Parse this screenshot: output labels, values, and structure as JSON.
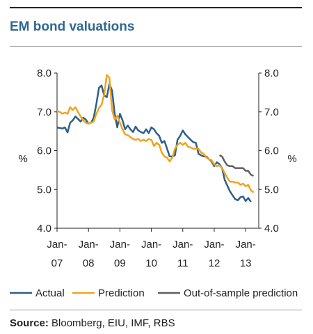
{
  "header": {
    "title": "EM bond valuations"
  },
  "footer": {
    "source_label": "Source:",
    "source_text": " Bloomberg, EIU, IMF, RBS"
  },
  "chart_data": {
    "type": "line",
    "title": "EM bond valuations",
    "ylabel_left": "%",
    "ylabel_right": "%",
    "ylim": [
      4.0,
      8.0
    ],
    "yticks": [
      "4.0",
      "5.0",
      "6.0",
      "7.0",
      "8.0"
    ],
    "xlim": [
      "2007-01",
      "2013-06"
    ],
    "xticks": [
      {
        "x": "2007-01",
        "line1": "Jan-",
        "line2": "07"
      },
      {
        "x": "2008-01",
        "line1": "Jan-",
        "line2": "08"
      },
      {
        "x": "2009-01",
        "line1": "Jan-",
        "line2": "09"
      },
      {
        "x": "2010-01",
        "line1": "Jan-",
        "line2": "10"
      },
      {
        "x": "2011-01",
        "line1": "Jan-",
        "line2": "11"
      },
      {
        "x": "2012-01",
        "line1": "Jan-",
        "line2": "12"
      },
      {
        "x": "2013-01",
        "line1": "Jan-",
        "line2": "13"
      }
    ],
    "grid": false,
    "legend_position": "bottom",
    "series": [
      {
        "name": "Actual",
        "color": "#2e5f8a",
        "points": [
          [
            "2007-01",
            6.6
          ],
          [
            "2007-03",
            6.57
          ],
          [
            "2007-04",
            6.6
          ],
          [
            "2007-05",
            6.47
          ],
          [
            "2007-06",
            6.72
          ],
          [
            "2007-07",
            6.78
          ],
          [
            "2007-08",
            6.88
          ],
          [
            "2007-09",
            6.82
          ],
          [
            "2007-10",
            6.75
          ],
          [
            "2007-11",
            6.85
          ],
          [
            "2007-12",
            6.8
          ],
          [
            "2008-01",
            6.7
          ],
          [
            "2008-02",
            6.72
          ],
          [
            "2008-03",
            6.85
          ],
          [
            "2008-04",
            7.2
          ],
          [
            "2008-05",
            7.62
          ],
          [
            "2008-06",
            7.68
          ],
          [
            "2008-07",
            7.42
          ],
          [
            "2008-08",
            7.38
          ],
          [
            "2008-09",
            7.72
          ],
          [
            "2008-10",
            7.55
          ],
          [
            "2008-11",
            6.95
          ],
          [
            "2008-12",
            6.6
          ],
          [
            "2009-01",
            6.95
          ],
          [
            "2009-02",
            6.78
          ],
          [
            "2009-03",
            6.55
          ],
          [
            "2009-04",
            6.65
          ],
          [
            "2009-05",
            6.55
          ],
          [
            "2009-06",
            6.48
          ],
          [
            "2009-07",
            6.62
          ],
          [
            "2009-08",
            6.52
          ],
          [
            "2009-09",
            6.48
          ],
          [
            "2009-10",
            6.45
          ],
          [
            "2009-11",
            6.55
          ],
          [
            "2009-12",
            6.45
          ],
          [
            "2010-01",
            6.6
          ],
          [
            "2010-02",
            6.55
          ],
          [
            "2010-03",
            6.45
          ],
          [
            "2010-04",
            6.38
          ],
          [
            "2010-05",
            6.2
          ],
          [
            "2010-06",
            6.25
          ],
          [
            "2010-07",
            6.05
          ],
          [
            "2010-08",
            5.85
          ],
          [
            "2010-09",
            5.85
          ],
          [
            "2010-10",
            5.88
          ],
          [
            "2010-11",
            6.28
          ],
          [
            "2010-12",
            6.38
          ],
          [
            "2011-01",
            6.52
          ],
          [
            "2011-02",
            6.42
          ],
          [
            "2011-03",
            6.35
          ],
          [
            "2011-04",
            6.28
          ],
          [
            "2011-05",
            6.22
          ],
          [
            "2011-06",
            6.2
          ],
          [
            "2011-07",
            5.92
          ],
          [
            "2011-08",
            5.88
          ],
          [
            "2011-09",
            5.85
          ],
          [
            "2011-10",
            5.85
          ],
          [
            "2011-11",
            5.78
          ],
          [
            "2011-12",
            5.72
          ],
          [
            "2012-01",
            5.6
          ],
          [
            "2012-02",
            5.7
          ],
          [
            "2012-03",
            5.65
          ],
          [
            "2012-04",
            5.55
          ],
          [
            "2012-05",
            5.25
          ],
          [
            "2012-06",
            5.1
          ],
          [
            "2012-07",
            4.95
          ],
          [
            "2012-08",
            4.85
          ],
          [
            "2012-09",
            4.75
          ],
          [
            "2012-10",
            4.72
          ],
          [
            "2012-11",
            4.8
          ],
          [
            "2012-12",
            4.82
          ],
          [
            "2013-01",
            4.7
          ],
          [
            "2013-02",
            4.78
          ],
          [
            "2013-03",
            4.68
          ]
        ]
      },
      {
        "name": "Prediction",
        "color": "#f0a31e",
        "points": [
          [
            "2007-01",
            7.02
          ],
          [
            "2007-02",
            7.0
          ],
          [
            "2007-03",
            6.95
          ],
          [
            "2007-04",
            6.98
          ],
          [
            "2007-05",
            6.95
          ],
          [
            "2007-06",
            7.12
          ],
          [
            "2007-07",
            7.05
          ],
          [
            "2007-08",
            7.12
          ],
          [
            "2007-09",
            7.0
          ],
          [
            "2007-10",
            6.88
          ],
          [
            "2007-11",
            6.78
          ],
          [
            "2007-12",
            6.72
          ],
          [
            "2008-01",
            6.7
          ],
          [
            "2008-02",
            6.72
          ],
          [
            "2008-03",
            6.75
          ],
          [
            "2008-04",
            6.95
          ],
          [
            "2008-05",
            7.1
          ],
          [
            "2008-06",
            7.18
          ],
          [
            "2008-07",
            7.45
          ],
          [
            "2008-08",
            7.95
          ],
          [
            "2008-09",
            7.88
          ],
          [
            "2008-10",
            7.05
          ],
          [
            "2008-11",
            6.8
          ],
          [
            "2008-12",
            6.9
          ],
          [
            "2009-01",
            6.72
          ],
          [
            "2009-02",
            6.55
          ],
          [
            "2009-03",
            6.42
          ],
          [
            "2009-04",
            6.4
          ],
          [
            "2009-05",
            6.35
          ],
          [
            "2009-06",
            6.3
          ],
          [
            "2009-07",
            6.28
          ],
          [
            "2009-08",
            6.3
          ],
          [
            "2009-09",
            6.25
          ],
          [
            "2009-10",
            6.28
          ],
          [
            "2009-11",
            6.25
          ],
          [
            "2009-12",
            6.3
          ],
          [
            "2010-01",
            6.28
          ],
          [
            "2010-02",
            6.12
          ],
          [
            "2010-03",
            6.2
          ],
          [
            "2010-04",
            6.15
          ],
          [
            "2010-05",
            5.95
          ],
          [
            "2010-06",
            5.85
          ],
          [
            "2010-07",
            5.82
          ],
          [
            "2010-08",
            5.72
          ],
          [
            "2010-09",
            5.82
          ],
          [
            "2010-10",
            6.05
          ],
          [
            "2010-11",
            6.15
          ],
          [
            "2010-12",
            6.2
          ],
          [
            "2011-01",
            6.15
          ],
          [
            "2011-02",
            6.2
          ],
          [
            "2011-03",
            6.1
          ],
          [
            "2011-04",
            6.08
          ],
          [
            "2011-05",
            6.05
          ],
          [
            "2011-06",
            6.05
          ],
          [
            "2011-07",
            6.05
          ],
          [
            "2011-08",
            5.95
          ],
          [
            "2011-09",
            5.92
          ],
          [
            "2011-10",
            5.82
          ],
          [
            "2011-11",
            5.78
          ],
          [
            "2011-12",
            5.75
          ],
          [
            "2012-01",
            5.65
          ],
          [
            "2012-02",
            5.6
          ],
          [
            "2012-03",
            5.62
          ],
          [
            "2012-04",
            5.55
          ],
          [
            "2012-05",
            5.42
          ],
          [
            "2012-06",
            5.3
          ],
          [
            "2012-07",
            5.2
          ],
          [
            "2012-08",
            5.2
          ],
          [
            "2012-09",
            5.18
          ],
          [
            "2012-10",
            5.18
          ],
          [
            "2012-11",
            5.12
          ],
          [
            "2012-12",
            5.15
          ],
          [
            "2013-01",
            5.08
          ],
          [
            "2013-02",
            5.12
          ],
          [
            "2013-03",
            4.98
          ],
          [
            "2013-04",
            4.92
          ]
        ]
      },
      {
        "name": "Out-of-sample prediction",
        "color": "#606060",
        "points": [
          [
            "2012-03",
            5.88
          ],
          [
            "2012-04",
            5.85
          ],
          [
            "2012-05",
            5.72
          ],
          [
            "2012-06",
            5.62
          ],
          [
            "2012-07",
            5.6
          ],
          [
            "2012-08",
            5.6
          ],
          [
            "2012-09",
            5.55
          ],
          [
            "2012-10",
            5.55
          ],
          [
            "2012-11",
            5.55
          ],
          [
            "2012-12",
            5.55
          ],
          [
            "2013-01",
            5.48
          ],
          [
            "2013-02",
            5.48
          ],
          [
            "2013-03",
            5.38
          ],
          [
            "2013-04",
            5.35
          ]
        ]
      }
    ]
  }
}
